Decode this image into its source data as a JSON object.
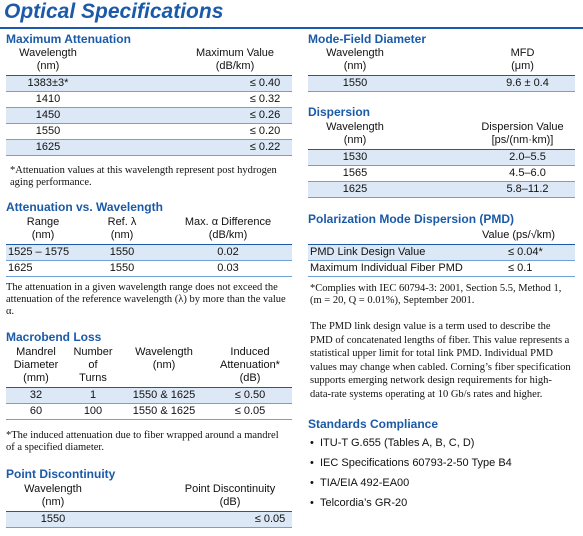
{
  "title": "Optical Specifications",
  "max_atten": {
    "heading": "Maximum Attenuation",
    "col1": "Wavelength",
    "col1u": "(nm)",
    "col2": "Maximum Value",
    "col2u": "(dB/km)",
    "rows": [
      {
        "wl": "1383±3*",
        "val": "≤ 0.40"
      },
      {
        "wl": "1410",
        "val": "≤ 0.32"
      },
      {
        "wl": "1450",
        "val": "≤ 0.26"
      },
      {
        "wl": "1550",
        "val": "≤ 0.20"
      },
      {
        "wl": "1625",
        "val": "≤ 0.22"
      }
    ],
    "note": "*Attenuation values at this wavelength represent post hydrogen aging performance."
  },
  "atten_vs_wl": {
    "heading": "Attenuation vs. Wavelength",
    "c1": "Range",
    "c1u": "(nm)",
    "c2": "Ref. λ",
    "c2u": "(nm)",
    "c3": "Max. α Difference",
    "c3u": "(dB/km)",
    "rows": [
      {
        "range": "1525 – 1575",
        "ref": "1550",
        "diff": "0.02"
      },
      {
        "range": "1625",
        "ref": "1550",
        "diff": "0.03"
      }
    ],
    "note": "The attenuation in a given wavelength range does not exceed the attenuation of the reference wavelength (λ) by more than the value α."
  },
  "macrobend": {
    "heading": "Macrobend Loss",
    "c1": "Mandrel",
    "c1b": "Diameter",
    "c1u": "(mm)",
    "c2": "Number",
    "c2b": "of",
    "c2u": "Turns",
    "c3": "Wavelength",
    "c3u": "(nm)",
    "c4": "Induced",
    "c4b": "Attenuation*",
    "c4u": "(dB)",
    "rows": [
      {
        "d": "32",
        "n": "1",
        "wl": "1550 & 1625",
        "att": "≤ 0.50"
      },
      {
        "d": "60",
        "n": "100",
        "wl": "1550 & 1625",
        "att": "≤ 0.05"
      }
    ],
    "note": "*The induced attenuation due to fiber wrapped around a mandrel of a specified diameter."
  },
  "point_disc": {
    "heading": "Point Discontinuity",
    "c1": "Wavelength",
    "c1u": "(nm)",
    "c2": "Point Discontinuity",
    "c2u": "(dB)",
    "rows": [
      {
        "wl": "1550",
        "val": "≤ 0.05"
      }
    ]
  },
  "mfd": {
    "heading": "Mode-Field Diameter",
    "c1": "Wavelength",
    "c1u": "(nm)",
    "c2": "MFD",
    "c2u": "(μm)",
    "rows": [
      {
        "wl": "1550",
        "val": "9.6 ± 0.4"
      }
    ]
  },
  "dispersion": {
    "heading": "Dispersion",
    "c1": "Wavelength",
    "c1u": "(nm)",
    "c2": "Dispersion Value",
    "c2u": "[ps/(nm·km)]",
    "rows": [
      {
        "wl": "1530",
        "val": "2.0–5.5"
      },
      {
        "wl": "1565",
        "val": "4.5–6.0"
      },
      {
        "wl": "1625",
        "val": "5.8–11.2"
      }
    ]
  },
  "pmd": {
    "heading": "Polarization Mode Dispersion (PMD)",
    "c2": "Value (ps/√km)",
    "rows": [
      {
        "label": "PMD Link Design Value",
        "val": "≤ 0.04*"
      },
      {
        "label": "Maximum Individual Fiber PMD",
        "val": "≤ 0.1"
      }
    ],
    "note": "*Complies with IEC 60794-3: 2001, Section 5.5, Method 1, (m = 20, Q = 0.01%), September 2001.",
    "para": "The PMD link design value is a term used to describe the PMD of concatenated lengths of fiber. This value represents a statistical upper limit for total link PMD. Individual PMD values may change when cabled. Corning’s fiber specification supports emerging network design requirements for high-data-rate systems operating at 10 Gb/s rates and higher."
  },
  "standards": {
    "heading": "Standards Compliance",
    "bullet": "•",
    "items": [
      "ITU-T G.655 (Tables A, B, C, D)",
      "IEC Specifications 60793-2-50 Type B4",
      "TIA/EIA 492-EA00",
      "Telcordia’s GR-20"
    ]
  }
}
